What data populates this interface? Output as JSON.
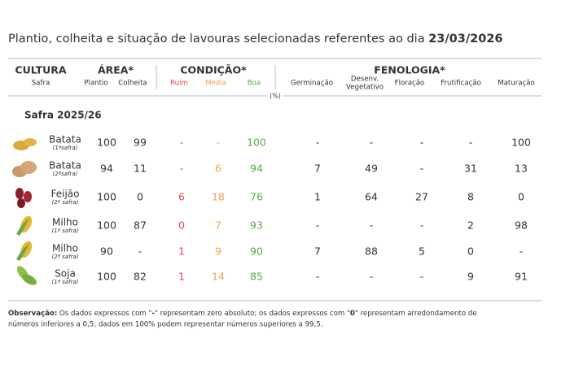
{
  "header": {
    "title": "Plantio, colheita e situação de lavouras selecionadas referentes ao dia ",
    "date": "23/03/2026"
  },
  "table": {
    "groups": [
      "CULTURA",
      "ÁREA*",
      "CONDIÇÃO*",
      "FENOLOGIA*"
    ],
    "subheaders": [
      "Safra",
      "Plantio",
      "Colheita",
      "Ruim",
      "Média",
      "Boa",
      "Germinação",
      "Desenv.",
      "Vegetativo",
      "Floração",
      "Frutificação",
      "Maturação"
    ],
    "unit": "(%)",
    "section": "Safra 2025/26",
    "rows": [
      {
        "name": "Batata",
        "season": "(1ªsafra)",
        "cells": [
          100,
          99,
          "-",
          "-",
          100,
          "-",
          "-",
          "-",
          "-",
          100
        ]
      },
      {
        "name": "Batata",
        "season": "(2ªsafra)",
        "cells": [
          94,
          11,
          "-",
          6,
          94,
          7,
          49,
          "-",
          31,
          13
        ]
      },
      {
        "name": "Feijão",
        "season": "(2ª safra)",
        "cells": [
          100,
          0,
          6,
          18,
          76,
          1,
          64,
          27,
          8,
          0
        ]
      },
      {
        "name": "Milho",
        "season": "(1ª safra)",
        "cells": [
          100,
          87,
          0,
          7,
          93,
          "-",
          "-",
          "-",
          2,
          98
        ]
      },
      {
        "name": "Milho",
        "season": "(2ª safra)",
        "cells": [
          90,
          "-",
          1,
          9,
          90,
          7,
          88,
          5,
          0,
          "-"
        ]
      },
      {
        "name": "Soja",
        "season": "(1ª safra)",
        "cells": [
          100,
          82,
          1,
          14,
          85,
          "-",
          "-",
          "-",
          9,
          91
        ]
      }
    ]
  },
  "note": {
    "parts": [
      "Observação:",
      " Os dados expressos com \"",
      "-",
      "\" representam zero absoluto; os dados expressos com \"",
      "0",
      "\" representam arredondamento de",
      "números inferiores a 0,5; dados em 100% podem representar números superiores a 99,5."
    ]
  }
}
